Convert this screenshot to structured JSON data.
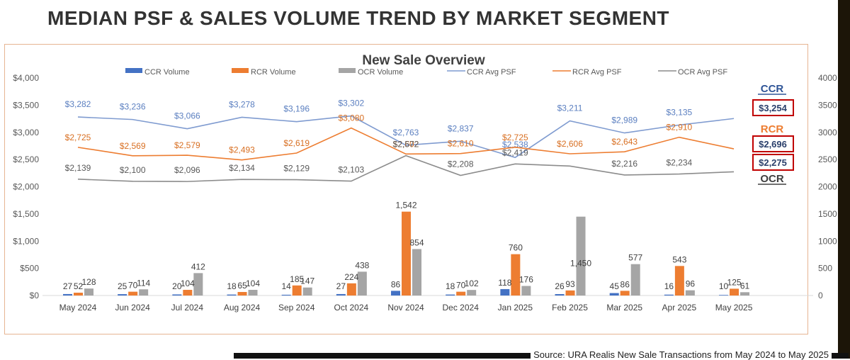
{
  "page_title": "MEDIAN PSF & SALES VOLUME TREND BY MARKET SEGMENT",
  "source_note": "Source: URA Realis New Sale Transactions from May 2024 to May 2025",
  "colors": {
    "ccr": "#4472c4",
    "rcr": "#ed7d31",
    "ocr": "#a5a5a5",
    "ccr_line": "#7f9bd0",
    "ocr_line": "#8c8c8c",
    "highlight_box": "#c00000",
    "frame": "#e6b592"
  },
  "chart_data": {
    "type": "bar",
    "title": "New Sale Overview",
    "categories": [
      "May 2024",
      "Jun 2024",
      "Jul 2024",
      "Aug 2024",
      "Sep 2024",
      "Oct 2024",
      "Nov 2024",
      "Dec 2024",
      "Jan 2025",
      "Feb 2025",
      "Mar 2025",
      "Apr 2025",
      "May 2025"
    ],
    "legend_position": "top",
    "grid": false,
    "y_left": {
      "min": 0,
      "max": 4000,
      "ticks": [
        0,
        500,
        1000,
        1500,
        2000,
        2500,
        3000,
        3500,
        4000
      ],
      "tick_labels": [
        "$0",
        "$500",
        "$1,000",
        "$1,500",
        "$2,000",
        "$2,500",
        "$3,000",
        "$3,500",
        "$4,000"
      ]
    },
    "y_right": {
      "min": 0,
      "max": 4000,
      "ticks": [
        0,
        500,
        1000,
        1500,
        2000,
        2500,
        3000,
        3500,
        4000
      ],
      "tick_labels": [
        "0",
        "500",
        "1000",
        "1500",
        "2000",
        "2500",
        "3000",
        "3500",
        "4000"
      ]
    },
    "bar_series": [
      {
        "name": "CCR Volume",
        "key": "ccr",
        "values": [
          27,
          25,
          20,
          18,
          14,
          27,
          86,
          18,
          118,
          26,
          45,
          16,
          10
        ],
        "labels": [
          "27",
          "25",
          "20",
          "18",
          "14",
          "27",
          "86",
          "18",
          "118",
          "26",
          "45",
          "16",
          "10"
        ]
      },
      {
        "name": "RCR Volume",
        "key": "rcr",
        "values": [
          52,
          70,
          104,
          65,
          185,
          224,
          1542,
          70,
          760,
          93,
          86,
          543,
          125
        ],
        "labels": [
          "52",
          "70",
          "104",
          "65",
          "185",
          "224",
          "1,542",
          "70",
          "760",
          "93",
          "86",
          "543",
          "125"
        ]
      },
      {
        "name": "OCR Volume",
        "key": "ocr",
        "values": [
          128,
          114,
          412,
          104,
          147,
          438,
          854,
          102,
          176,
          1450,
          577,
          96,
          61
        ],
        "labels": [
          "128",
          "114",
          "412",
          "104",
          "147",
          "438",
          "854",
          "102",
          "176",
          "1,450",
          "577",
          "96",
          "61"
        ]
      }
    ],
    "line_series": [
      {
        "name": "CCR Avg PSF",
        "key": "ccr",
        "values": [
          3282,
          3236,
          3066,
          3278,
          3196,
          3302,
          2763,
          2837,
          2538,
          3211,
          2989,
          3135,
          3254
        ],
        "labels": [
          "$3,282",
          "$3,236",
          "$3,066",
          "$3,278",
          "$3,196",
          "$3,302",
          "$2,763",
          "$2,837",
          "$2,538",
          "$3,211",
          "$2,989",
          "$3,135",
          "$3,254"
        ]
      },
      {
        "name": "RCR Avg PSF",
        "key": "rcr",
        "values": [
          2725,
          2569,
          2579,
          2493,
          2619,
          3080,
          2602,
          2610,
          2725,
          2606,
          2643,
          2910,
          2696
        ],
        "labels": [
          "$2,725",
          "$2,569",
          "$2,579",
          "$2,493",
          "$2,619",
          "$3,080",
          "$2,602",
          "$2,610",
          "$2,725",
          "$2,606",
          "$2,643",
          "$2,910",
          "$2,696"
        ]
      },
      {
        "name": "OCR Avg PSF",
        "key": "ocr",
        "values": [
          2139,
          2100,
          2096,
          2134,
          2129,
          2103,
          2572,
          2208,
          2419,
          2380,
          2216,
          2234,
          2275
        ],
        "labels": [
          "$2,139",
          "$2,100",
          "$2,096",
          "$2,134",
          "$2,129",
          "$2,103",
          "$2,572",
          "$2,208",
          "$2,419",
          "",
          "$2,216",
          "$2,234",
          "$2,275"
        ]
      }
    ],
    "highlights": [
      {
        "segment": "CCR",
        "value": "$3,254"
      },
      {
        "segment": "RCR",
        "value": "$2,696"
      },
      {
        "segment": "OCR",
        "value": "$2,275"
      }
    ]
  }
}
